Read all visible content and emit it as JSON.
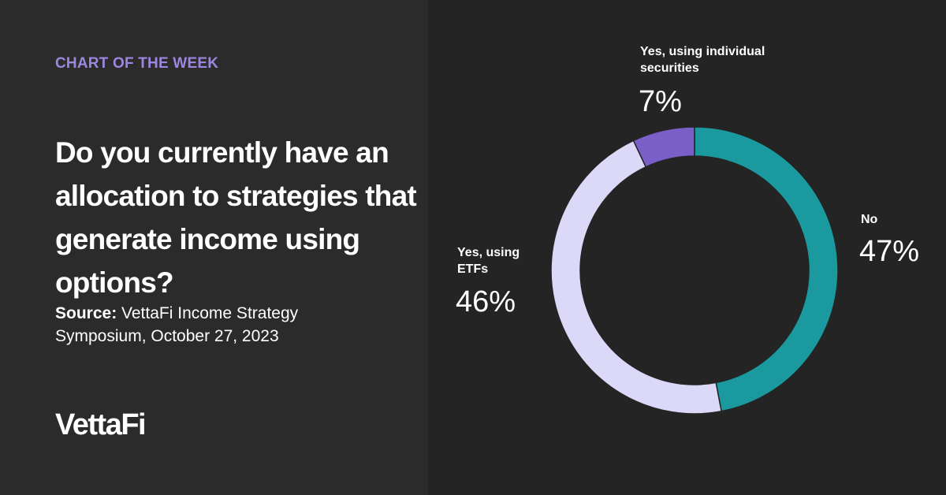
{
  "kicker": "CHART OF THE WEEK",
  "source_label": "Source:",
  "source": "VettaFi Income Strategy Symposium, October 27, 2023",
  "logo": "VettaFi",
  "chart_data": {
    "type": "donut",
    "title": "Do you currently have an allocation to strategies that generate income using options?",
    "categories": [
      "No",
      "Yes, using ETFs",
      "Yes, using individual securities"
    ],
    "values": [
      47,
      46,
      7
    ],
    "value_labels": [
      "47%",
      "46%",
      "7%"
    ],
    "colors": [
      "#1a9a9e",
      "#dcd8f8",
      "#7b5fc9"
    ]
  }
}
